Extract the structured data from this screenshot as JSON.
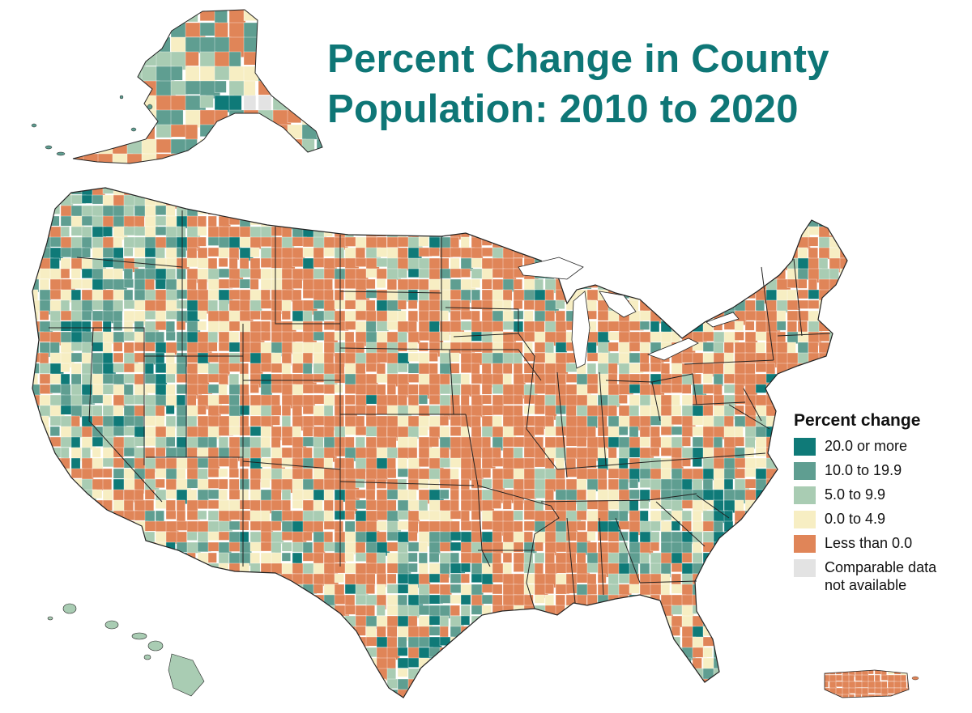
{
  "title": {
    "line1": "Percent Change in County",
    "line2": "Population: 2010 to 2020"
  },
  "legend": {
    "title": "Percent change",
    "items": [
      {
        "label": "20.0 or more",
        "color": "#0f7a78"
      },
      {
        "label": "10.0 to 19.9",
        "color": "#5f9e91"
      },
      {
        "label": "5.0 to 9.9",
        "color": "#a9ccb3"
      },
      {
        "label": "0.0 to 4.9",
        "color": "#f7eec3"
      },
      {
        "label": "Less than 0.0",
        "color": "#e08558"
      },
      {
        "label": "Comparable data\nnot available",
        "color": "#e3e3e3"
      }
    ]
  },
  "colors": {
    "title": "#0e7676",
    "border": "#222222",
    "county_line": "#ffffff"
  }
}
